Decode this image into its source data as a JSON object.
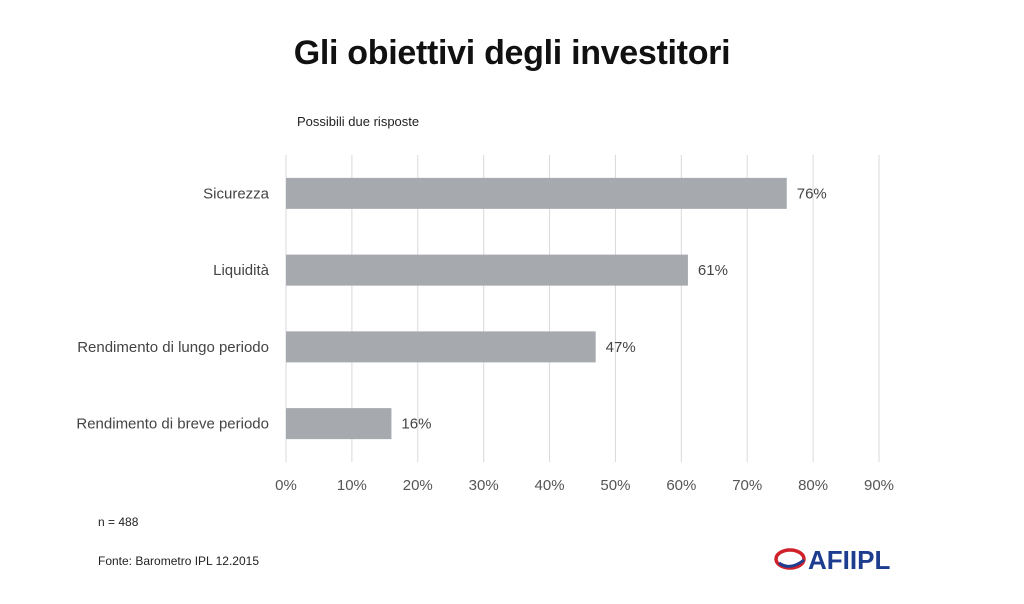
{
  "title": "Gli obiettivi degli investitori",
  "subtitle": "Possibili due risposte",
  "note": "n = 488",
  "source": "Fonte: Barometro IPL 12.2015",
  "logo_text": "AFIIPL",
  "colors": {
    "bar": "#a6a9ae",
    "grid": "#d9d9d9",
    "logo_red": "#d0202a",
    "logo_blue": "#1d3d8f"
  },
  "chart_data": {
    "type": "bar",
    "orientation": "horizontal",
    "categories": [
      "Sicurezza",
      "Liquidità",
      "Rendimento di lungo periodo",
      "Rendimento di breve periodo"
    ],
    "values": [
      76,
      61,
      47,
      16
    ],
    "value_labels": [
      "76%",
      "61%",
      "47%",
      "16%"
    ],
    "xlim": [
      0,
      90
    ],
    "xticks": [
      0,
      10,
      20,
      30,
      40,
      50,
      60,
      70,
      80,
      90
    ],
    "xtick_labels": [
      "0%",
      "10%",
      "20%",
      "30%",
      "40%",
      "50%",
      "60%",
      "70%",
      "80%",
      "90%"
    ],
    "grid": true
  }
}
